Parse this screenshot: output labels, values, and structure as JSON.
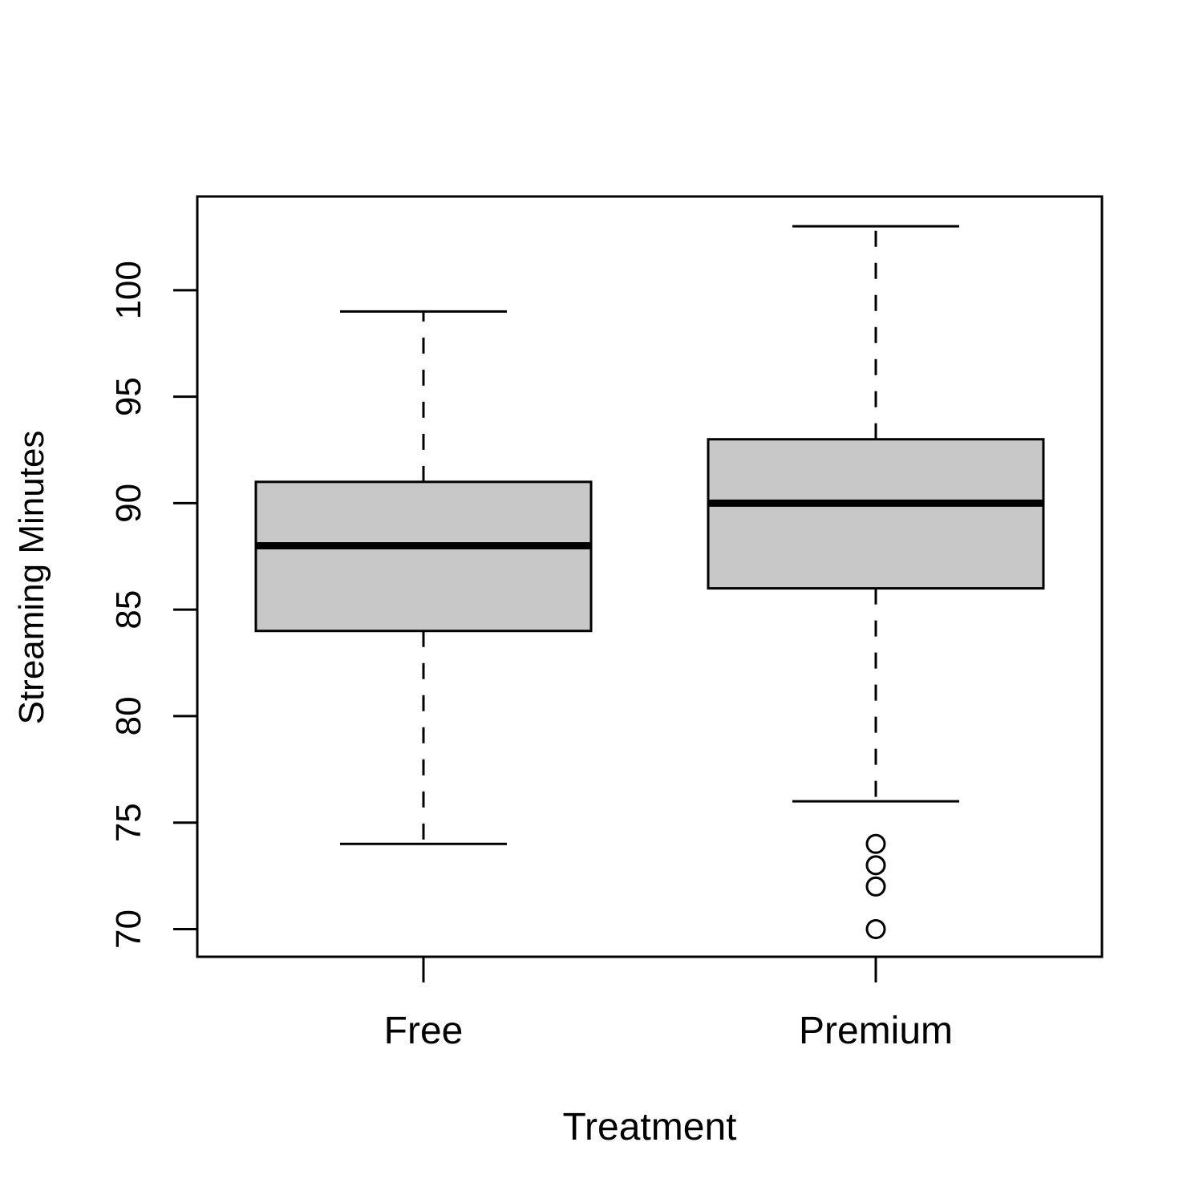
{
  "chart_data": {
    "type": "boxplot",
    "title": "",
    "xlabel": "Treatment",
    "ylabel": "Streaming Minutes",
    "categories": [
      "Free",
      "Premium"
    ],
    "boxes": [
      {
        "name": "Free",
        "whisker_low": 74,
        "q1": 84,
        "median": 88,
        "q3": 91,
        "whisker_high": 99,
        "outliers": []
      },
      {
        "name": "Premium",
        "whisker_low": 76,
        "q1": 86,
        "median": 90,
        "q3": 93,
        "whisker_high": 103,
        "outliers": [
          74,
          73,
          72,
          70
        ]
      }
    ],
    "ylim": [
      68.7,
      104.4
    ],
    "yticks": [
      70,
      75,
      80,
      85,
      90,
      95,
      100
    ],
    "grid": false,
    "legend": "none",
    "colors": {
      "box_fill": "#c8c8c8",
      "stroke": "#000000",
      "background": "#ffffff"
    }
  }
}
